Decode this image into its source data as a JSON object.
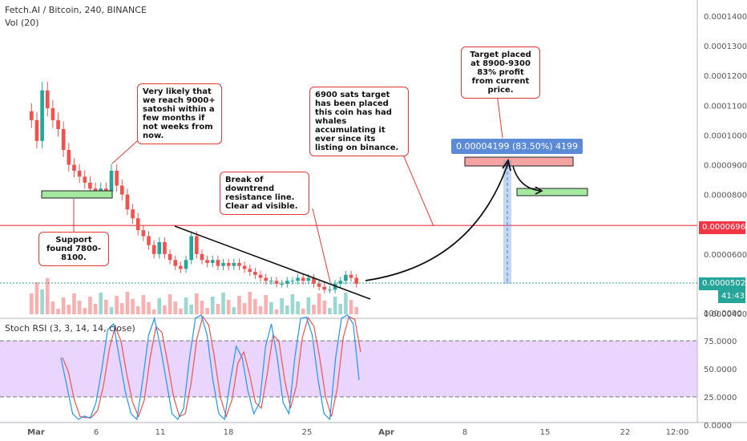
{
  "header": {
    "symbol": "Fetch.AI / Bitcoin, 240, BINANCE",
    "volume": "Vol (20)",
    "stoch": "Stoch RSI (3, 3, 14, 14, close)"
  },
  "price_axis": [
    "0.00014000",
    "0.00013000",
    "0.00012000",
    "0.00011000",
    "0.00010000",
    "0.00009000",
    "0.00008000",
    "0.00006000",
    "0.00004000"
  ],
  "stoch_axis": [
    "100.0000",
    "75.0000",
    "50.0000",
    "25.0000",
    "0.0000"
  ],
  "time_axis": [
    "Mar",
    "6",
    "11",
    "18",
    "25",
    "Apr",
    "8",
    "15",
    "22",
    "12:00"
  ],
  "tags": {
    "red_line": "0.00006960",
    "last_price": "0.00005024",
    "countdown": "41:43"
  },
  "measure": "0.00004199 (83.50%) 4199",
  "notes": {
    "reach": "Very likely that we reach 9000+ satoshi within a few months if not weeks from now.",
    "support": "Support found 7800-8100.",
    "breakout": "Break of downtrend resistance line. Clear ad visible.",
    "target6900": "6900 sats target has been placed this coin has had whales accumulating it ever since its listing on binance.",
    "target8900": "Target placed at 8900-9300 83% profit from current price."
  },
  "colors": {
    "up": "#26a69a",
    "down": "#ef5350",
    "red_line": "#f23645",
    "last_price": "#26a69a",
    "stoch_band": "#d9b3ff",
    "measure": "#5b8bd6",
    "zone_red": "#f5a3a3",
    "zone_green": "#a5e8a0"
  },
  "chart_data": {
    "type": "candlestick",
    "title": "Fetch.AI / Bitcoin, 240, BINANCE",
    "interval": "240",
    "ylim": [
      3.8e-05,
      0.000145
    ],
    "horizontal_line": 6.96e-05,
    "last_price": 5.024e-05,
    "closes": [
      0.000105,
      9.8e-05,
      0.000115,
      0.000109,
      0.000105,
      0.000102,
      9.5e-05,
      9e-05,
      8.8e-05,
      8.6e-05,
      8.4e-05,
      8.2e-05,
      8.1e-05,
      8.2e-05,
      8.1e-05,
      8.8e-05,
      8.3e-05,
      8e-05,
      7.5e-05,
      7.2e-05,
      6.8e-05,
      6.6e-05,
      6.3e-05,
      6e-05,
      6.4e-05,
      6e-05,
      5.8e-05,
      5.6e-05,
      5.5e-05,
      5.8e-05,
      6.6e-05,
      6e-05,
      5.8e-05,
      5.7e-05,
      5.8e-05,
      5.6e-05,
      5.7e-05,
      5.6e-05,
      5.7e-05,
      5.6e-05,
      5.5e-05,
      5.4e-05,
      5.3e-05,
      5.2e-05,
      5.1e-05,
      5.1e-05,
      5e-05,
      5e-05,
      5.1e-05,
      5.1e-05,
      5.2e-05,
      5.1e-05,
      5.2e-05,
      5e-05,
      4.9e-05,
      4.8e-05,
      4.8e-05,
      5e-05,
      5.1e-05,
      5.3e-05,
      5.2e-05,
      5e-05
    ],
    "stoch_rsi_k": [
      60,
      35,
      10,
      5,
      8,
      6,
      20,
      50,
      85,
      90,
      60,
      30,
      10,
      5,
      40,
      80,
      95,
      70,
      40,
      10,
      5,
      15,
      60,
      95,
      98,
      80,
      40,
      10,
      5,
      40,
      70,
      60,
      30,
      10,
      20,
      70,
      90,
      60,
      20,
      10,
      60,
      95,
      96,
      80,
      40,
      10,
      5,
      60,
      95,
      98,
      90,
      40
    ]
  }
}
